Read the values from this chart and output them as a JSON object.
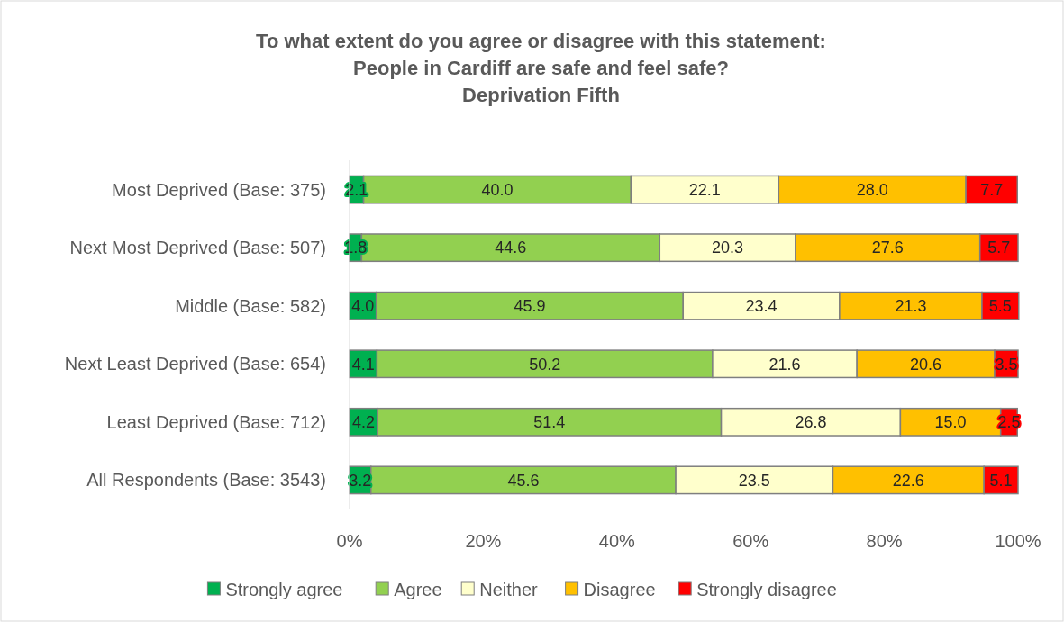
{
  "chart_data": {
    "type": "bar",
    "orientation": "horizontal",
    "stacked": true,
    "title": "To what extent do you agree or disagree with this statement: People in Cardiff are safe and feel safe?",
    "subtitle": "Deprivation Fifth",
    "categories": [
      "Most Deprived (Base: 375)",
      "Next Most Deprived (Base: 507)",
      "Middle (Base: 582)",
      "Next Least Deprived (Base: 654)",
      "Least Deprived (Base: 712)",
      "All Respondents (Base: 3543)"
    ],
    "series": [
      {
        "name": "Strongly agree",
        "color": "#00b050",
        "values": [
          2.1,
          1.8,
          4.0,
          4.1,
          4.2,
          3.2
        ],
        "value_labels": [
          "2.1",
          "1.8",
          "4.0",
          "4.1",
          "4.2",
          "3.2"
        ]
      },
      {
        "name": "Agree",
        "color": "#92d050",
        "values": [
          40.0,
          44.6,
          45.9,
          50.2,
          51.4,
          45.6
        ],
        "value_labels": [
          "40.0",
          "44.6",
          "45.9",
          "50.2",
          "51.4",
          "45.6"
        ]
      },
      {
        "name": "Neither",
        "color": "#ffffcc",
        "values": [
          22.1,
          20.3,
          23.4,
          21.6,
          26.8,
          23.5
        ],
        "value_labels": [
          "22.1",
          "20.3",
          "23.4",
          "21.6",
          "26.8",
          "23.5"
        ]
      },
      {
        "name": "Disagree",
        "color": "#ffc000",
        "values": [
          28.0,
          27.6,
          21.3,
          20.6,
          15.0,
          22.6
        ],
        "value_labels": [
          "28.0",
          "27.6",
          "21.3",
          "20.6",
          "15.0",
          "22.6"
        ]
      },
      {
        "name": "Strongly disagree",
        "color": "#ff0000",
        "values": [
          7.7,
          5.7,
          5.5,
          3.5,
          2.5,
          5.1
        ],
        "value_labels": [
          "7.7",
          "5.7",
          "5.5",
          "3.5",
          "2.5",
          "5.1"
        ]
      }
    ],
    "xlim": [
      0,
      100
    ],
    "xticks": [
      {
        "value": 0,
        "label": "0%"
      },
      {
        "value": 20,
        "label": "20%"
      },
      {
        "value": 40,
        "label": "40%"
      },
      {
        "value": 60,
        "label": "60%"
      },
      {
        "value": 80,
        "label": "80%"
      },
      {
        "value": 100,
        "label": "100%"
      }
    ],
    "grid": false,
    "legend": "bottom"
  }
}
